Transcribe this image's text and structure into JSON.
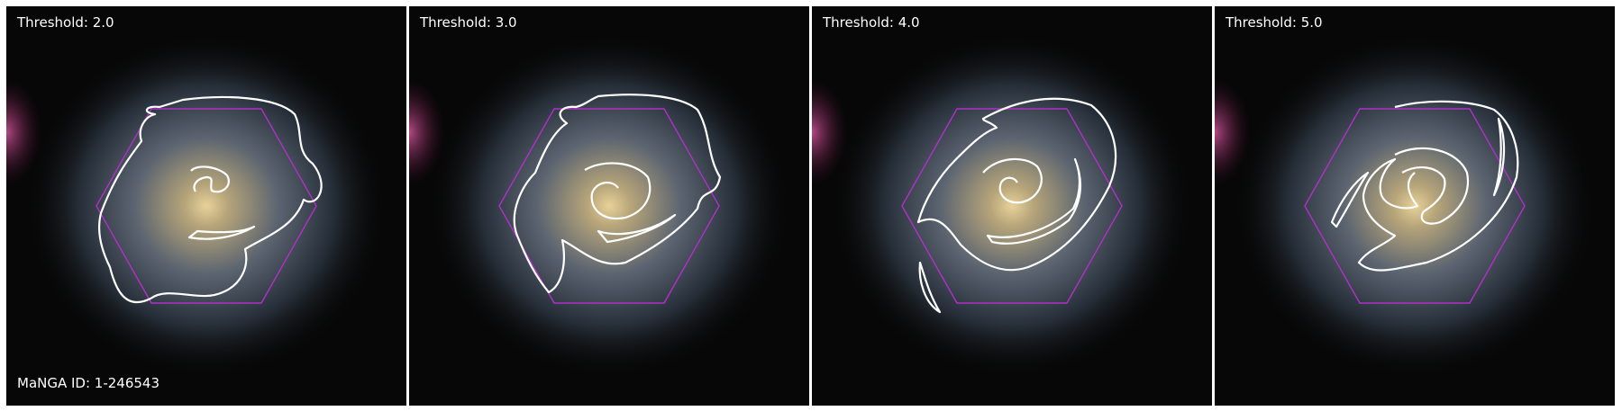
{
  "panels": [
    {
      "threshold_label": "Threshold: 2.0"
    },
    {
      "threshold_label": "Threshold: 3.0"
    },
    {
      "threshold_label": "Threshold: 4.0"
    },
    {
      "threshold_label": "Threshold: 5.0"
    }
  ],
  "manga_id_label": "MaNGA ID: 1-246543",
  "colors": {
    "background": "#ffffff",
    "sky": "#070707",
    "galaxy_core": "#c9b27c",
    "galaxy_halo": "#58626e",
    "edge_glow": "#a03c78",
    "hexagon": "#b030c8",
    "contour": "#ffffff",
    "label_text": "#ffffff"
  }
}
